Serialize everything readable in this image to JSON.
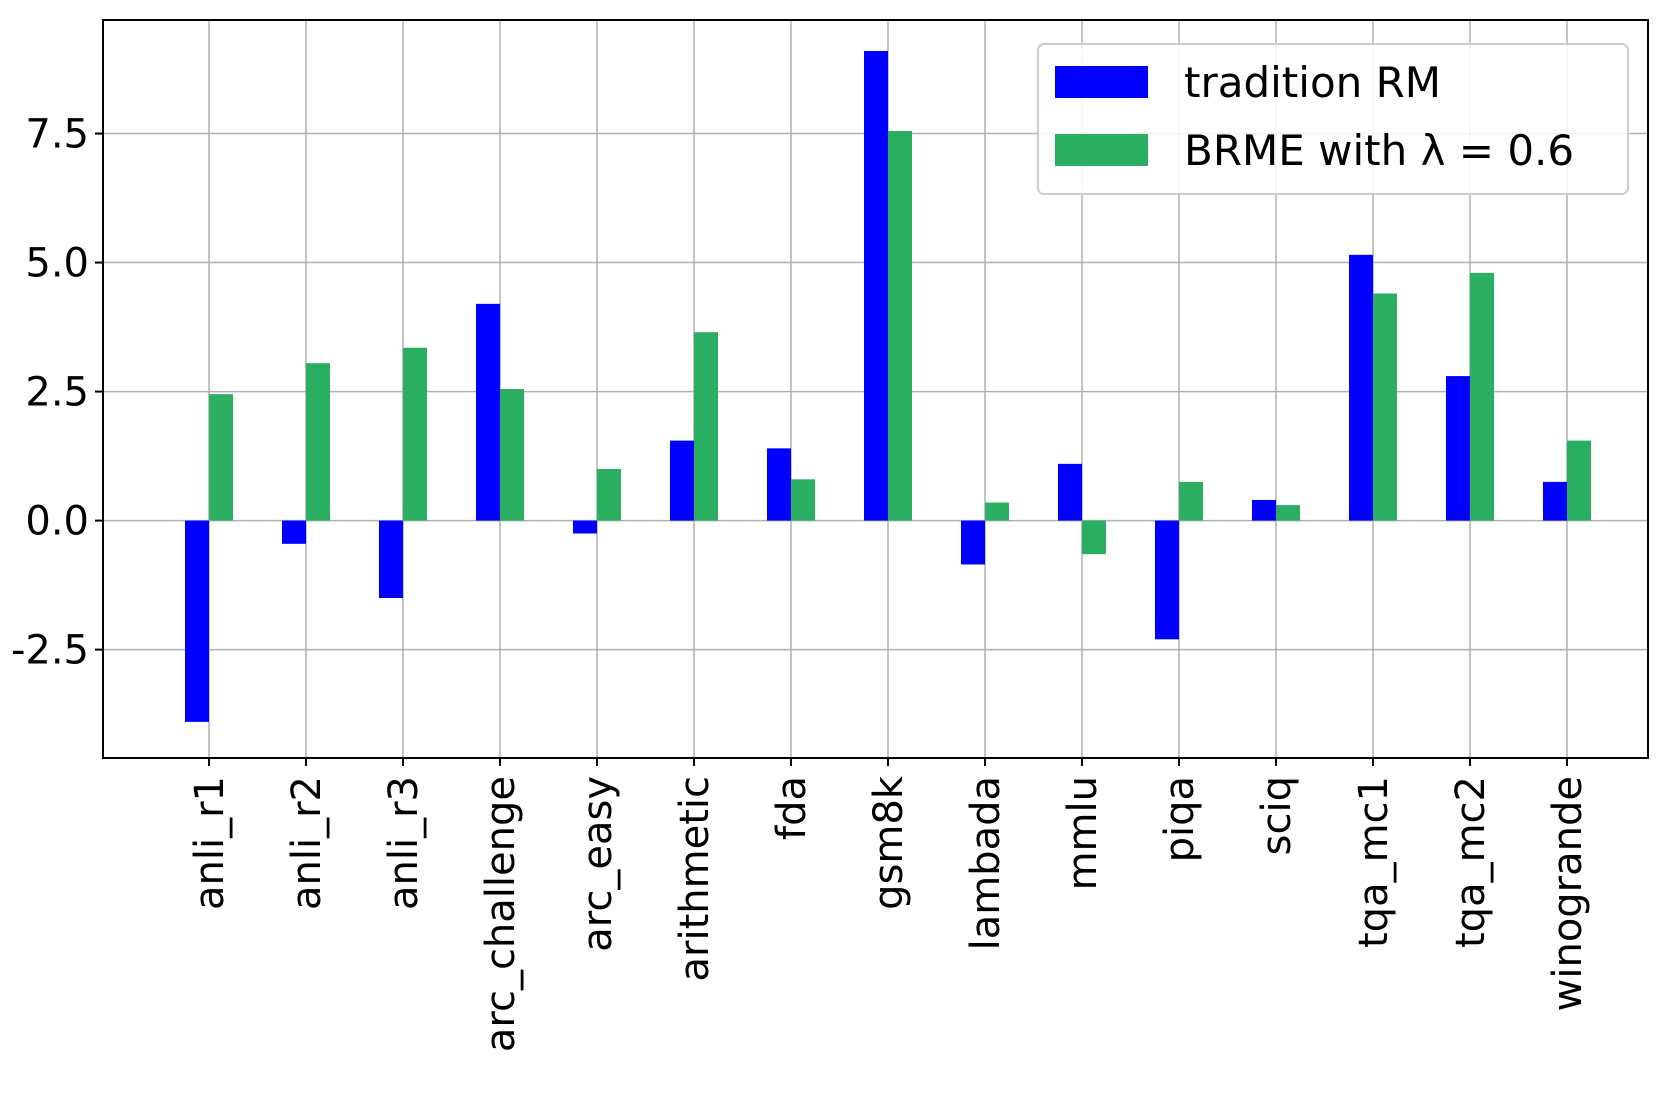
{
  "chart_data": {
    "type": "bar",
    "categories": [
      "anli_r1",
      "anli_r2",
      "anli_r3",
      "arc_challenge",
      "arc_easy",
      "arithmetic",
      "fda",
      "gsm8k",
      "lambada",
      "mmlu",
      "piqa",
      "sciq",
      "tqa_mc1",
      "tqa_mc2",
      "winogrande"
    ],
    "series": [
      {
        "name": "tradition RM",
        "color": "#0000ff",
        "values": [
          -3.9,
          -0.45,
          -1.5,
          4.2,
          -0.25,
          1.55,
          1.4,
          9.1,
          -0.85,
          1.1,
          -2.3,
          0.4,
          5.15,
          2.8,
          0.75
        ]
      },
      {
        "name": "BRME with λ = 0.6",
        "color": "#2aae61",
        "values": [
          2.45,
          3.05,
          3.35,
          2.55,
          1.0,
          3.65,
          0.8,
          7.55,
          0.35,
          -0.65,
          0.75,
          0.3,
          4.4,
          4.8,
          1.55
        ]
      }
    ],
    "yticks": [
      "-2.5",
      "0.0",
      "2.5",
      "5.0",
      "7.5"
    ],
    "ylim": [
      -4.6,
      9.7
    ],
    "grid": true,
    "legend_position": "top-right",
    "title": "",
    "xlabel": "",
    "ylabel": ""
  }
}
